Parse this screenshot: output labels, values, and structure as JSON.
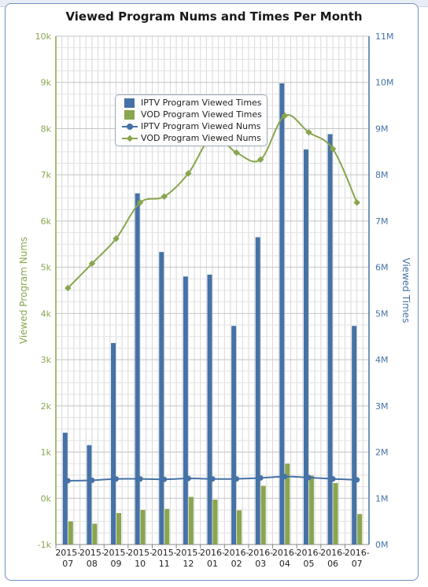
{
  "chart_data": {
    "type": "bar",
    "title": "Viewed Program Nums and Times Per Month",
    "categories": [
      [
        "2015-",
        "07"
      ],
      [
        "2015-",
        "08"
      ],
      [
        "2015-",
        "09"
      ],
      [
        "2015-",
        "10"
      ],
      [
        "2015-",
        "11"
      ],
      [
        "2015-",
        "12"
      ],
      [
        "2016-",
        "01"
      ],
      [
        "2016-",
        "02"
      ],
      [
        "2016-",
        "03"
      ],
      [
        "2016-",
        "04"
      ],
      [
        "2016-",
        "05"
      ],
      [
        "2016-",
        "06"
      ],
      [
        "2016-",
        "07"
      ]
    ],
    "y_left": {
      "label": "Viewed Program Nums",
      "min": -1000,
      "max": 10000,
      "step": 1000,
      "ticks": [
        "-1k",
        "0k",
        "1k",
        "2k",
        "3k",
        "4k",
        "5k",
        "6k",
        "7k",
        "8k",
        "9k",
        "10k"
      ]
    },
    "y_right": {
      "label": "Viewed Times",
      "min": 0,
      "max": 11000000,
      "step": 1000000,
      "ticks": [
        "0M",
        "1M",
        "2M",
        "3M",
        "4M",
        "5M",
        "6M",
        "7M",
        "8M",
        "9M",
        "10M",
        "11M"
      ]
    },
    "series": [
      {
        "name": "IPTV Program Viewed Times",
        "kind": "bar",
        "axis": "right",
        "color": "#4572a7",
        "values": [
          2420000,
          2150000,
          4360000,
          7600000,
          6330000,
          5800000,
          5840000,
          4730000,
          6650000,
          9980000,
          8550000,
          8880000,
          4730000
        ]
      },
      {
        "name": "VOD Program Viewed Times",
        "kind": "bar",
        "axis": "right",
        "color": "#89a54e",
        "values": [
          500000,
          450000,
          680000,
          750000,
          770000,
          1030000,
          970000,
          740000,
          1270000,
          1750000,
          1490000,
          1330000,
          660000
        ]
      },
      {
        "name": "IPTV Program Viewed Nums",
        "kind": "line",
        "axis": "left",
        "color": "#4572a7",
        "values": [
          380,
          390,
          420,
          420,
          410,
          430,
          420,
          420,
          440,
          470,
          450,
          420,
          400
        ]
      },
      {
        "name": "VOD Program Viewed Nums",
        "kind": "line",
        "axis": "left",
        "color": "#89a54e",
        "values": [
          4550,
          5080,
          5620,
          6400,
          6530,
          7030,
          7830,
          7480,
          7330,
          8280,
          7920,
          7560,
          6400
        ]
      }
    ],
    "grid": true,
    "legend_placement": "top-center"
  }
}
